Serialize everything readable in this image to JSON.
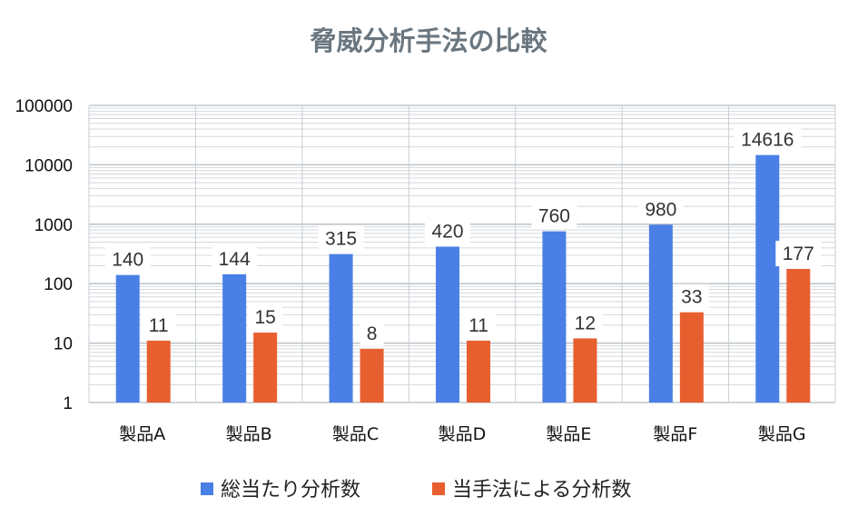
{
  "chart_data": {
    "type": "bar",
    "title": "脅威分析手法の比較",
    "categories": [
      "製品A",
      "製品B",
      "製品C",
      "製品D",
      "製品E",
      "製品F",
      "製品G"
    ],
    "series": [
      {
        "name": "総当たり分析数",
        "color": "#4a7fe6",
        "values": [
          140,
          144,
          315,
          420,
          760,
          980,
          14616
        ]
      },
      {
        "name": "当手法による分析数",
        "color": "#e85f2f",
        "values": [
          11,
          15,
          8,
          11,
          12,
          33,
          177
        ]
      }
    ],
    "y_scale": "log",
    "ylim": [
      1,
      100000
    ],
    "y_ticks": [
      "1",
      "10",
      "100",
      "1000",
      "10000",
      "100000"
    ],
    "grid": true,
    "legend_position": "bottom"
  }
}
